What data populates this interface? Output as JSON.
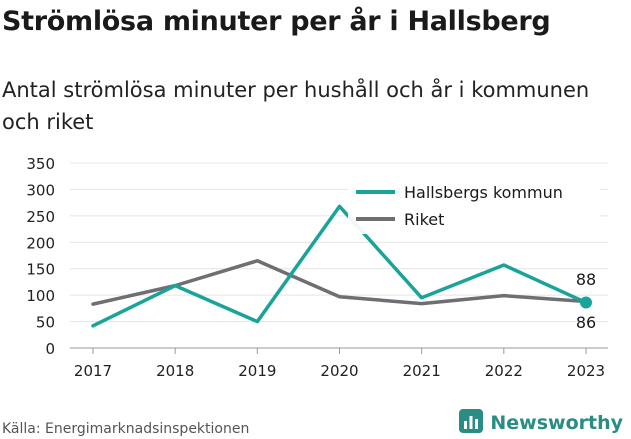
{
  "title": "Strömlösa minuter per år i Hallsberg",
  "subtitle": "Antal strömlösa minuter per hushåll och år i kommunen och riket",
  "source": "Källa: Energimarknadsinspektionen",
  "brand": "Newsworthy",
  "colors": {
    "kommun": "#1aa399",
    "riket": "#6e6e73",
    "brand": "#2a8c84"
  },
  "chart_data": {
    "type": "line",
    "x": [
      "2017",
      "2018",
      "2019",
      "2020",
      "2021",
      "2022",
      "2023"
    ],
    "yticks": [
      "0",
      "50",
      "100",
      "150",
      "200",
      "250",
      "300",
      "350"
    ],
    "ylim": [
      0,
      350
    ],
    "series": [
      {
        "name": "Hallsbergs kommun",
        "values": [
          42,
          118,
          50,
          268,
          95,
          157,
          86
        ]
      },
      {
        "name": "Riket",
        "values": [
          83,
          118,
          165,
          97,
          84,
          99,
          88
        ]
      }
    ],
    "end_labels": [
      "88",
      "86"
    ],
    "legend": "top-right",
    "grid": true
  }
}
